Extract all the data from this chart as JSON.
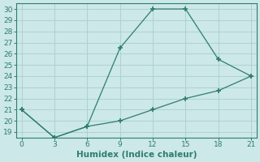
{
  "xlabel": "Humidex (Indice chaleur)",
  "line1_x": [
    0,
    3,
    6,
    9,
    12,
    15,
    18,
    21
  ],
  "line1_y": [
    21,
    18.5,
    19.5,
    26.5,
    30,
    30,
    25.5,
    24
  ],
  "line2_x": [
    0,
    3,
    6,
    9,
    12,
    15,
    18,
    21
  ],
  "line2_y": [
    21,
    18.5,
    19.5,
    20.0,
    21.0,
    22.0,
    22.7,
    24
  ],
  "line_color": "#2e7d6e",
  "bg_color": "#cce8e8",
  "grid_color": "#aacece",
  "xlim": [
    -0.5,
    21.5
  ],
  "ylim": [
    18.5,
    30.5
  ],
  "xticks": [
    0,
    3,
    6,
    9,
    12,
    15,
    18,
    21
  ],
  "yticks": [
    19,
    20,
    21,
    22,
    23,
    24,
    25,
    26,
    27,
    28,
    29,
    30
  ],
  "tick_fontsize": 6.5,
  "xlabel_fontsize": 7.5
}
